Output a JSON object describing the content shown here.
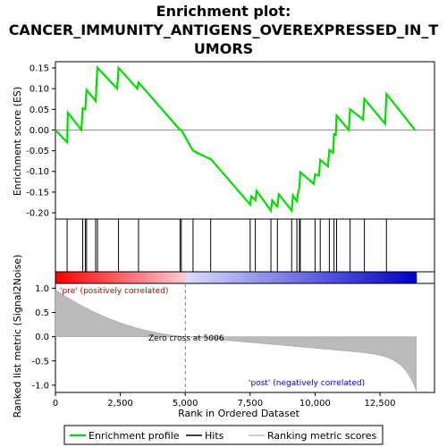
{
  "chart_data": {
    "type": "line",
    "title_line1": "Enrichment plot:",
    "title_line2": "CANCER_IMMUNITY_ANTIGENS_OVEREXPRESSED_IN_T",
    "title_line3": "UMORS",
    "es_panel": {
      "ylabel": "Enrichment score (ES)",
      "ylim": [
        -0.215,
        0.165
      ],
      "yticks": [
        0.15,
        0.1,
        0.05,
        0.0,
        -0.05,
        -0.1,
        -0.15,
        -0.2
      ],
      "ytick_labels": [
        "0.15",
        "0.10",
        "0.05",
        "0.00",
        "-0.05",
        "-0.10",
        "-0.15",
        "-0.20"
      ],
      "color": "#00dd00",
      "points": [
        [
          0,
          0.0
        ],
        [
          450,
          -0.03
        ],
        [
          480,
          0.042
        ],
        [
          1000,
          0.0
        ],
        [
          1050,
          0.052
        ],
        [
          1150,
          0.05
        ],
        [
          1200,
          0.097
        ],
        [
          1550,
          0.07
        ],
        [
          1580,
          0.11
        ],
        [
          1620,
          0.15
        ],
        [
          2380,
          0.1
        ],
        [
          2430,
          0.15
        ],
        [
          3150,
          0.1
        ],
        [
          3200,
          0.115
        ],
        [
          4800,
          0.0
        ],
        [
          4850,
          0.0
        ],
        [
          5300,
          -0.05
        ],
        [
          5950,
          -0.07
        ],
        [
          5980,
          -0.07
        ],
        [
          7500,
          -0.18
        ],
        [
          7550,
          -0.16
        ],
        [
          7700,
          -0.17
        ],
        [
          7750,
          -0.147
        ],
        [
          8300,
          -0.195
        ],
        [
          8350,
          -0.17
        ],
        [
          8550,
          -0.185
        ],
        [
          8600,
          -0.155
        ],
        [
          9100,
          -0.195
        ],
        [
          9150,
          -0.158
        ],
        [
          9300,
          -0.172
        ],
        [
          9330,
          -0.155
        ],
        [
          9400,
          -0.138
        ],
        [
          9430,
          -0.102
        ],
        [
          9950,
          -0.13
        ],
        [
          10000,
          -0.107
        ],
        [
          10150,
          -0.11
        ],
        [
          10200,
          -0.072
        ],
        [
          10500,
          -0.088
        ],
        [
          10550,
          -0.048
        ],
        [
          10700,
          -0.055
        ],
        [
          10730,
          -0.01
        ],
        [
          10800,
          -0.012
        ],
        [
          10830,
          0.035
        ],
        [
          11300,
          0.0
        ],
        [
          11350,
          0.05
        ],
        [
          11850,
          0.025
        ],
        [
          11900,
          0.075
        ],
        [
          12700,
          0.015
        ],
        [
          12750,
          0.087
        ],
        [
          13850,
          0.0
        ]
      ]
    },
    "hits": [
      450,
      1050,
      1150,
      1200,
      1550,
      1620,
      2430,
      3200,
      4800,
      4850,
      5300,
      5980,
      7500,
      7700,
      8300,
      8550,
      9100,
      9300,
      9400,
      9430,
      10000,
      10200,
      10550,
      10730,
      10830,
      11350,
      11900,
      12750
    ],
    "rank_panel": {
      "ylabel": "Ranked list metric (Signal2Noise)",
      "ylim": [
        -1.15,
        1.1
      ],
      "yticks": [
        1.0,
        0.5,
        0.0,
        -0.5,
        -1.0
      ],
      "ytick_labels": [
        "1.0",
        "0.5",
        "0.0",
        "-0.5",
        "-1.0"
      ],
      "zero_cross": 5006,
      "zero_cross_label": "Zero cross at 5006",
      "pre_label": "'pre' (positively correlated)",
      "post_label": "'post' (negatively correlated)"
    },
    "xlabel": "Rank in Ordered Dataset",
    "xlim": [
      0,
      14600
    ],
    "xticks": [
      0,
      2500,
      5000,
      7500,
      10000,
      12500
    ],
    "xtick_labels": [
      "0",
      "2,500",
      "5,000",
      "7,500",
      "10,000",
      "12,500"
    ],
    "n_genes": 13900,
    "legend": [
      {
        "label": "Enrichment profile",
        "color": "#00dd00"
      },
      {
        "label": "Hits",
        "color": "#000000"
      },
      {
        "label": "Ranking metric scores",
        "color": "#bbbbbb"
      }
    ]
  }
}
